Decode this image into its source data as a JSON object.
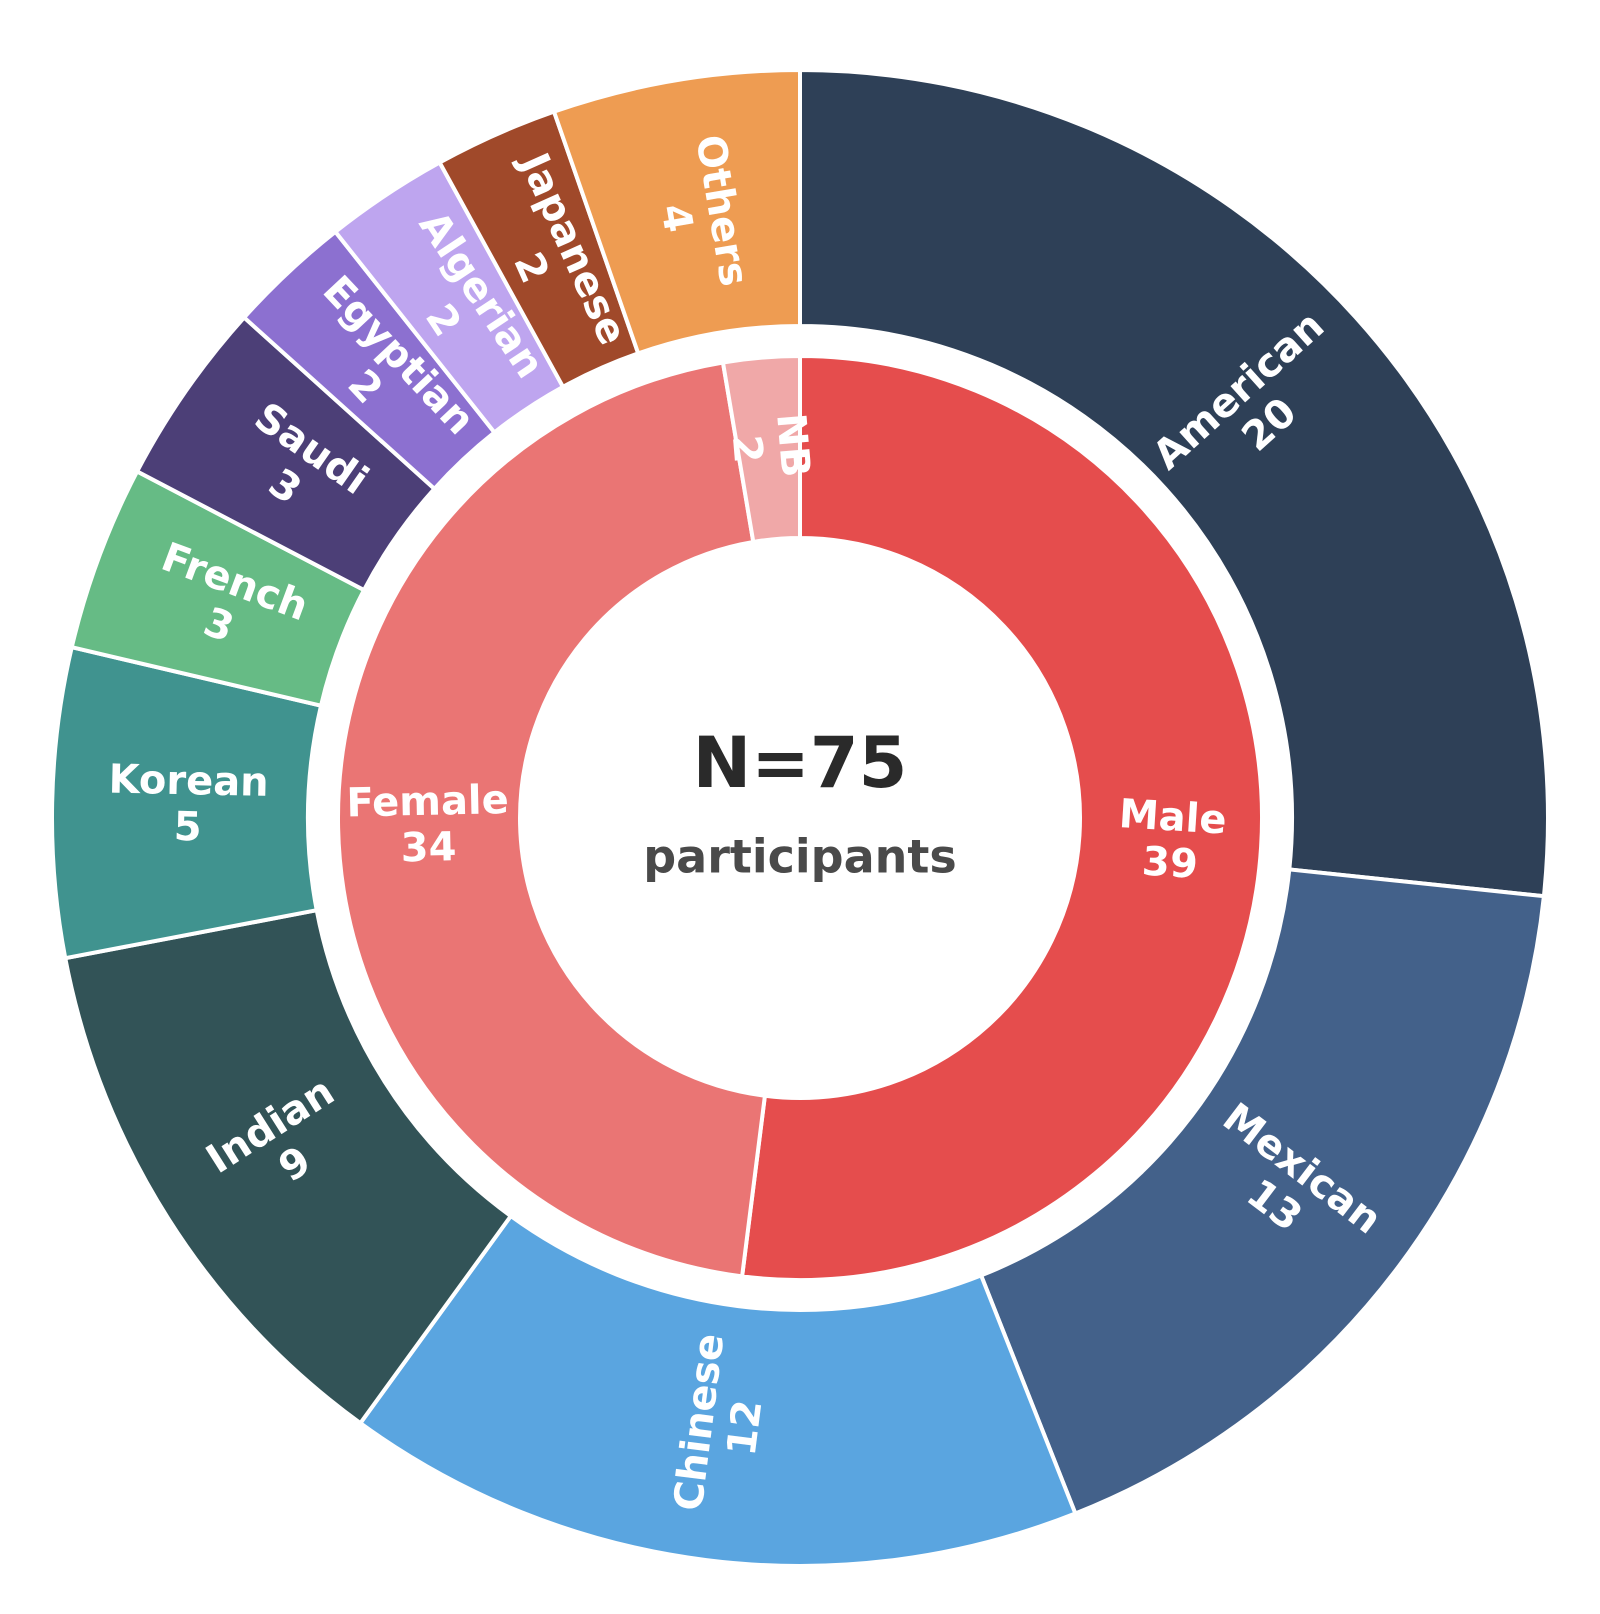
{
  "chart_data": {
    "type": "nested-donut",
    "center_label": "N=75",
    "center_sublabel": "participants",
    "inner": {
      "categories": [
        "Male",
        "Female",
        "NB"
      ],
      "values": [
        39,
        34,
        2
      ],
      "colors": [
        "#e54d4d",
        "#ea7574",
        "#f0a8a8"
      ]
    },
    "outer": {
      "categories": [
        "American",
        "Mexican",
        "Chinese",
        "Indian",
        "Korean",
        "French",
        "Saudi",
        "Egyptian",
        "Algerian",
        "Japanese",
        "Others"
      ],
      "values": [
        20,
        13,
        12,
        9,
        5,
        3,
        3,
        2,
        2,
        2,
        4
      ],
      "colors": [
        "#2e4057",
        "#43618a",
        "#5aa5e0",
        "#325357",
        "#40938f",
        "#66bb85",
        "#4c3f77",
        "#8c70d0",
        "#bea5ef",
        "#a0492a",
        "#ee9c52"
      ]
    }
  }
}
